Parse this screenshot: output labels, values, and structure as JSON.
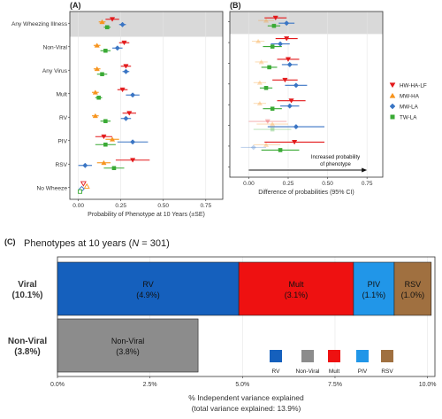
{
  "chart_data": [
    {
      "panel_label": "(A)",
      "type": "scatter",
      "xlabel": "Probability of Phenotype at 10 Years (±SE)",
      "x_ticks": [
        "0.00",
        "0.25",
        "0.50",
        "0.75"
      ],
      "xlim": [
        -0.05,
        0.85
      ],
      "categories": [
        "Any Wheezing Illness",
        "Non-Viral",
        "Any Virus",
        "Mult",
        "RV",
        "PIV",
        "RSV",
        "No Wheeze"
      ],
      "highlighted_category": "Any Wheezing Illness",
      "series": [
        {
          "name": "HW-HA-LF",
          "color": "#e31a1c",
          "marker": "triangle-down",
          "values": [
            0.2,
            0.27,
            0.28,
            0.26,
            0.3,
            0.15,
            0.32,
            0.03
          ],
          "se": [
            0.04,
            0.03,
            0.03,
            0.03,
            0.04,
            0.05,
            0.1,
            0.01
          ],
          "open": [
            false,
            false,
            false,
            false,
            false,
            false,
            false,
            true
          ]
        },
        {
          "name": "MW-HA",
          "color": "#f7941d",
          "marker": "triangle-up",
          "values": [
            0.14,
            0.11,
            0.11,
            0.1,
            0.1,
            0.2,
            0.15,
            0.05
          ],
          "se": [
            0.02,
            0.02,
            0.02,
            0.02,
            0.02,
            0.04,
            0.04,
            0.01
          ],
          "open": [
            false,
            false,
            false,
            false,
            false,
            false,
            false,
            true
          ]
        },
        {
          "name": "MW-LA",
          "color": "#3a75c4",
          "marker": "diamond",
          "values": [
            0.26,
            0.23,
            0.28,
            0.32,
            0.28,
            0.32,
            0.04,
            0.02
          ],
          "se": [
            0.02,
            0.03,
            0.02,
            0.04,
            0.03,
            0.09,
            0.04,
            0.01
          ],
          "open": [
            false,
            false,
            false,
            false,
            false,
            false,
            false,
            true
          ]
        },
        {
          "name": "TW-LA",
          "color": "#3aaa35",
          "marker": "square",
          "values": [
            0.17,
            0.16,
            0.14,
            0.12,
            0.16,
            0.16,
            0.21,
            0.01
          ],
          "se": [
            0.02,
            0.03,
            0.03,
            0.02,
            0.03,
            0.06,
            0.06,
            0.01
          ],
          "open": [
            false,
            false,
            false,
            false,
            false,
            false,
            false,
            true
          ]
        }
      ]
    },
    {
      "panel_label": "(B)",
      "type": "scatter",
      "xlabel": "Difference of probabilities (95% CI)",
      "x_ticks": [
        "0.00",
        "0.25",
        "0.50",
        "0.75"
      ],
      "xlim": [
        -0.12,
        0.85
      ],
      "categories": [
        "Any Wheezing Illness",
        "Non-Viral",
        "Any Virus",
        "Mult",
        "RV",
        "PIV",
        "RSV"
      ],
      "highlighted_category": "Any Wheezing Illness",
      "annotation": [
        "Increased probability",
        "of phenotype"
      ],
      "series": [
        {
          "name": "HW-HA-LF",
          "color": "#e31a1c",
          "marker": "triangle-down",
          "values": [
            0.17,
            0.24,
            0.25,
            0.23,
            0.27,
            0.12,
            0.29
          ],
          "low": [
            0.1,
            0.17,
            0.18,
            0.15,
            0.18,
            0.0,
            0.1
          ],
          "high": [
            0.24,
            0.31,
            0.32,
            0.31,
            0.36,
            0.24,
            0.48
          ],
          "faded": [
            false,
            false,
            false,
            false,
            false,
            true,
            false
          ]
        },
        {
          "name": "MW-HA",
          "color": "#f7941d",
          "marker": "triangle-up",
          "values": [
            0.11,
            0.06,
            0.08,
            0.07,
            0.07,
            0.15,
            0.11
          ],
          "low": [
            0.06,
            0.02,
            0.04,
            0.03,
            0.03,
            0.05,
            0.03
          ],
          "high": [
            0.16,
            0.1,
            0.12,
            0.11,
            0.11,
            0.25,
            0.2
          ],
          "faded": [
            true,
            true,
            true,
            true,
            true,
            true,
            true
          ]
        },
        {
          "name": "MW-LA",
          "color": "#3a75c4",
          "marker": "diamond",
          "values": [
            0.24,
            0.2,
            0.26,
            0.3,
            0.26,
            0.3,
            0.03
          ],
          "low": [
            0.19,
            0.14,
            0.21,
            0.23,
            0.2,
            0.12,
            -0.05
          ],
          "high": [
            0.29,
            0.26,
            0.31,
            0.37,
            0.32,
            0.48,
            0.11
          ],
          "faded": [
            false,
            false,
            false,
            false,
            false,
            false,
            true
          ]
        },
        {
          "name": "TW-LA",
          "color": "#3aaa35",
          "marker": "square",
          "values": [
            0.16,
            0.15,
            0.13,
            0.11,
            0.15,
            0.15,
            0.2
          ],
          "low": [
            0.12,
            0.09,
            0.08,
            0.07,
            0.09,
            0.03,
            0.08
          ],
          "high": [
            0.2,
            0.21,
            0.18,
            0.15,
            0.21,
            0.27,
            0.32
          ],
          "faded": [
            false,
            false,
            false,
            false,
            false,
            true,
            false
          ]
        }
      ]
    },
    {
      "panel_label": "(C)",
      "type": "bar",
      "title": "Phenotypes at 10 years (",
      "title_n": "N",
      "title_value": " = 301)",
      "xlabel": "% Independent variance explained",
      "xlabel2": "(total variance explained: 13.9%)",
      "x_ticks": [
        "0.0%",
        "2.5%",
        "5.0%",
        "7.5%",
        "10.0%"
      ],
      "xlim": [
        0,
        10.2
      ],
      "rows": [
        {
          "name": "Viral",
          "total": "(10.1%)",
          "segments": [
            {
              "name": "RV",
              "value": 4.9,
              "label": "(4.9%)",
              "color": "#1560bd"
            },
            {
              "name": "Mult",
              "value": 3.1,
              "label": "(3.1%)",
              "color": "#ee1111"
            },
            {
              "name": "PIV",
              "value": 1.1,
              "label": "(1.1%)",
              "color": "#2196e8"
            },
            {
              "name": "RSV",
              "value": 1.0,
              "label": "(1.0%)",
              "color": "#a07040"
            }
          ]
        },
        {
          "name": "Non-Viral",
          "total": "(3.8%)",
          "segments": [
            {
              "name": "Non-Viral",
              "value": 3.8,
              "label": "(3.8%)",
              "color": "#8c8c8c"
            }
          ]
        }
      ],
      "legend": [
        {
          "name": "RV",
          "color": "#1560bd"
        },
        {
          "name": "Non-Viral",
          "color": "#8c8c8c"
        },
        {
          "name": "Mult",
          "color": "#ee1111"
        },
        {
          "name": "PIV",
          "color": "#2196e8"
        },
        {
          "name": "RSV",
          "color": "#a07040"
        }
      ]
    }
  ]
}
